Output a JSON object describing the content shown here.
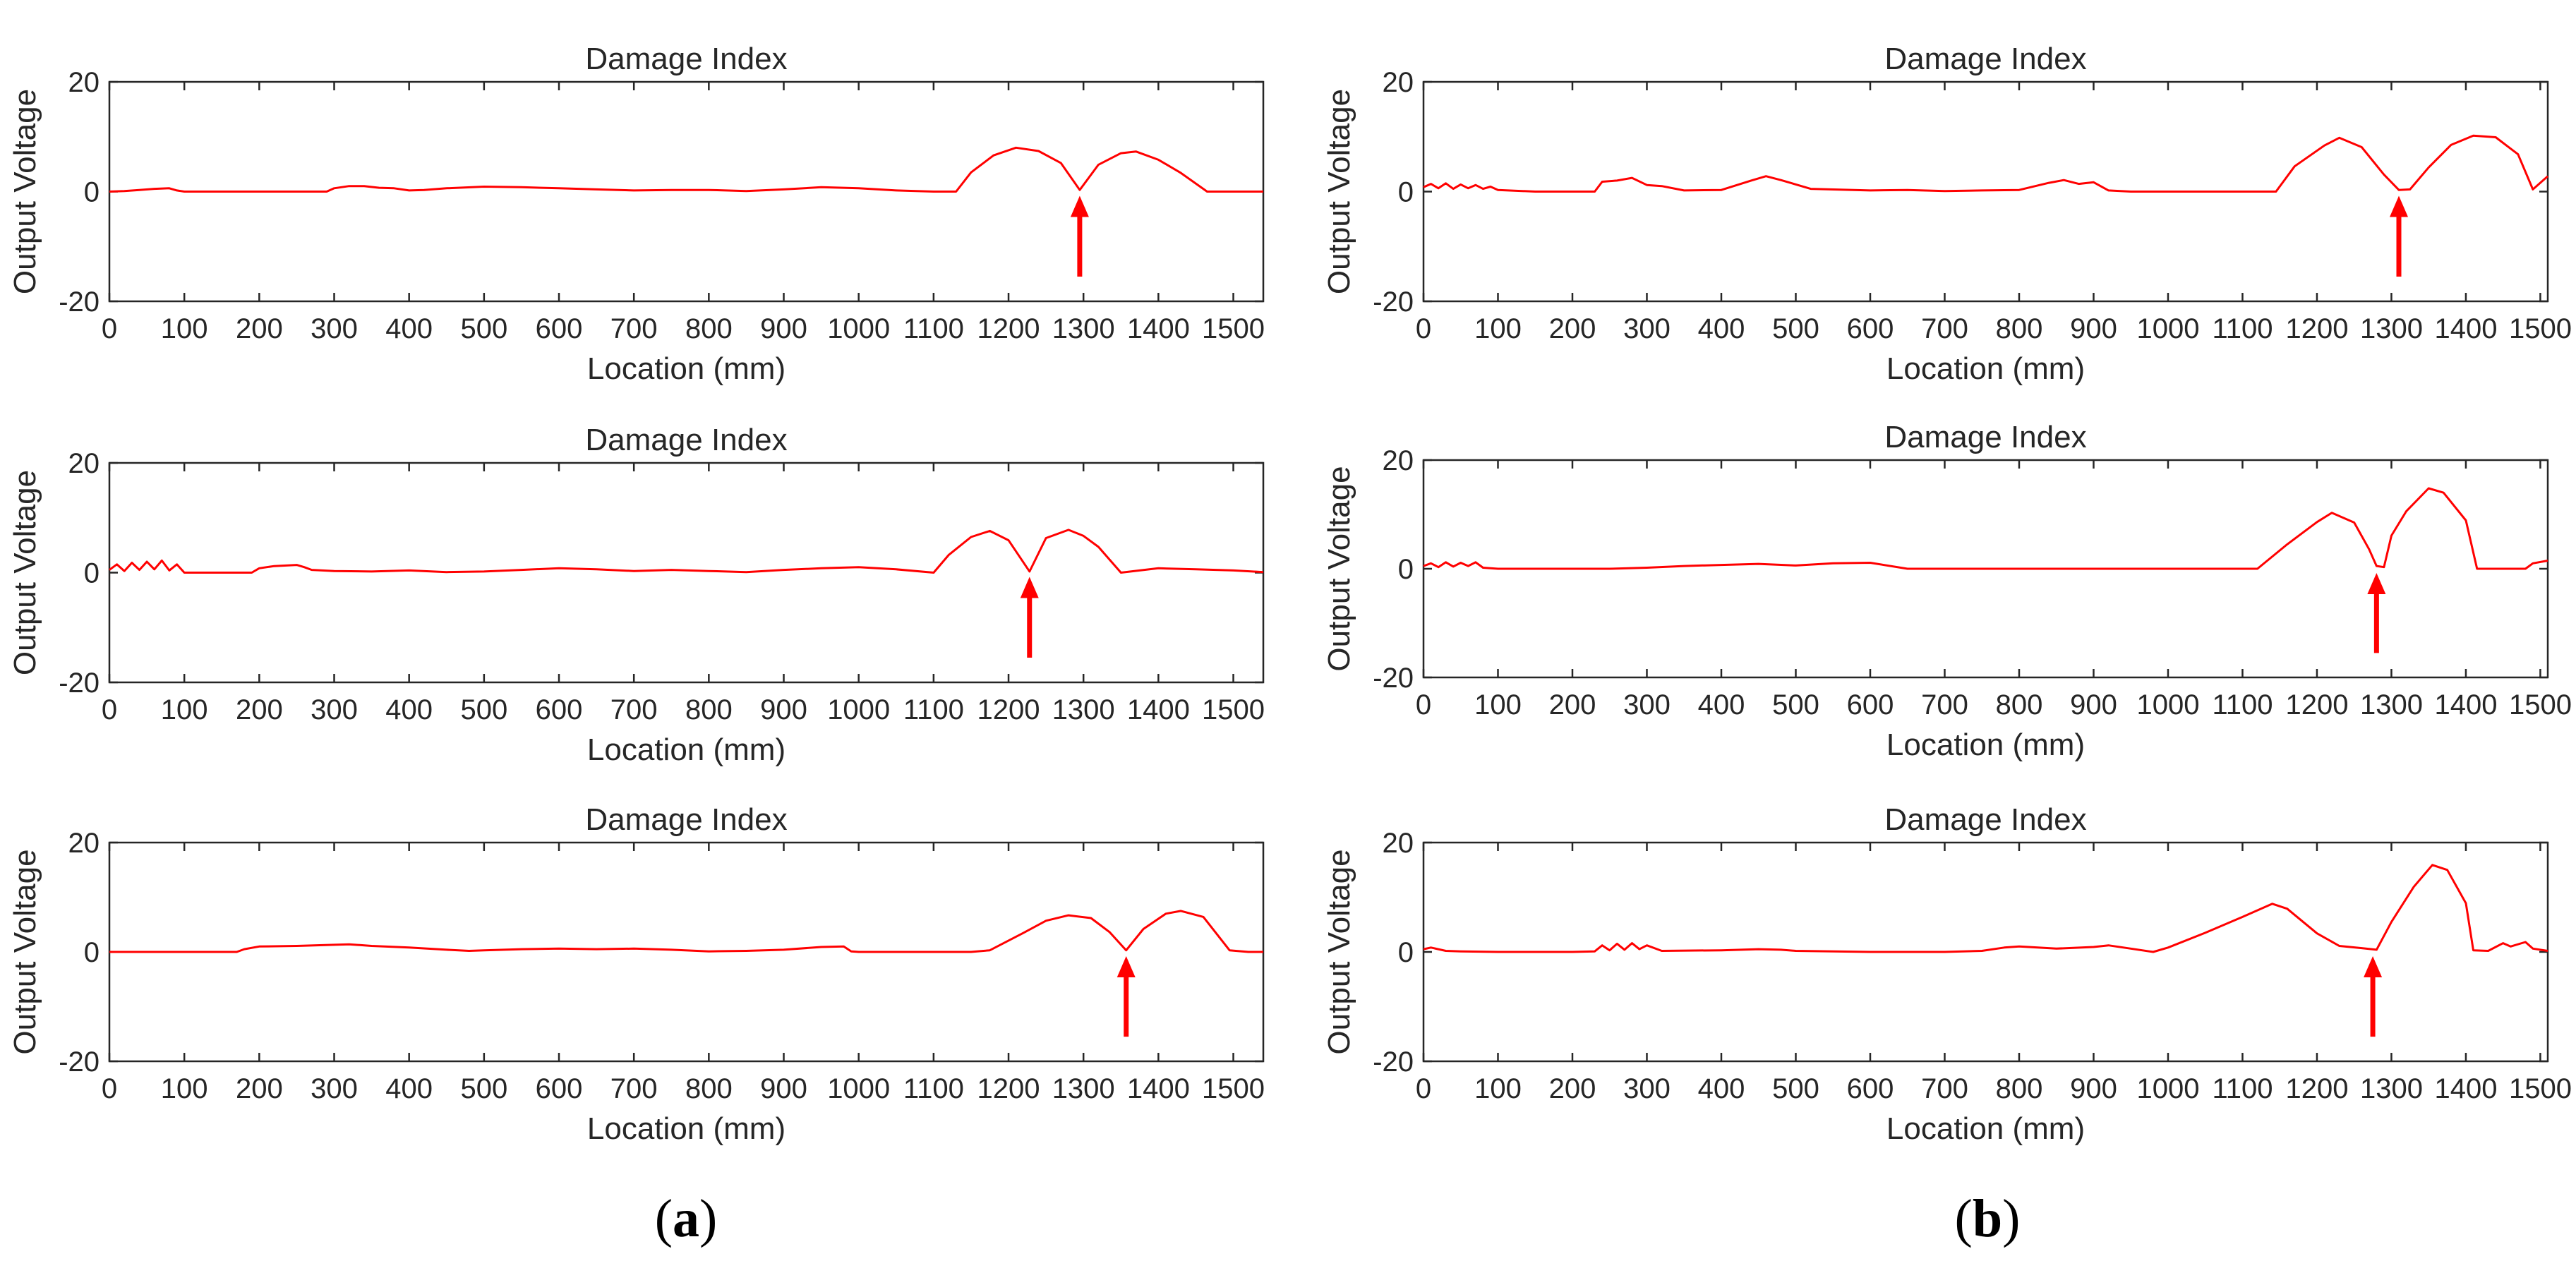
{
  "colors": {
    "series": "#ff0000",
    "arrow": "#ff0000",
    "axis": "#262626"
  },
  "panel_labels": [
    {
      "open": "(",
      "letter": "a",
      "close": ")"
    },
    {
      "open": "(",
      "letter": "b",
      "close": ")"
    }
  ],
  "chart_data": [
    {
      "type": "line",
      "panel": "a",
      "title": "Damage Index",
      "xlabel": "Location (mm)",
      "ylabel": "Output Voltage",
      "xlim": [
        0,
        1540
      ],
      "ylim": [
        -20,
        20
      ],
      "xticks": [
        0,
        100,
        200,
        300,
        400,
        500,
        600,
        700,
        800,
        900,
        1000,
        1100,
        1200,
        1300,
        1400,
        1500
      ],
      "yticks": [
        -20,
        0,
        20
      ],
      "series": [
        {
          "name": "Damage Index",
          "x": [
            0,
            20,
            40,
            60,
            80,
            90,
            100,
            150,
            200,
            250,
            290,
            300,
            320,
            340,
            360,
            380,
            400,
            420,
            450,
            500,
            550,
            600,
            650,
            700,
            750,
            800,
            850,
            900,
            950,
            1000,
            1050,
            1100,
            1130,
            1150,
            1180,
            1210,
            1240,
            1270,
            1295,
            1320,
            1350,
            1370,
            1400,
            1430,
            1465,
            1500,
            1520,
            1540
          ],
          "y": [
            0,
            0.1,
            0.3,
            0.5,
            0.6,
            0.2,
            0,
            0,
            0,
            0,
            0,
            0.6,
            1.0,
            1.0,
            0.7,
            0.6,
            0.2,
            0.3,
            0.6,
            0.9,
            0.8,
            0.6,
            0.4,
            0.2,
            0.3,
            0.3,
            0.1,
            0.4,
            0.8,
            0.6,
            0.2,
            0,
            0,
            3.5,
            6.6,
            8.0,
            7.4,
            5.2,
            0.3,
            4.9,
            7.0,
            7.3,
            5.8,
            3.4,
            0,
            0,
            0,
            0
          ]
        }
      ],
      "arrow_x": 1295
    },
    {
      "type": "line",
      "panel": "a",
      "title": "Damage Index",
      "xlabel": "Location (mm)",
      "ylabel": "Output Voltage",
      "xlim": [
        0,
        1540
      ],
      "ylim": [
        -20,
        20
      ],
      "xticks": [
        0,
        100,
        200,
        300,
        400,
        500,
        600,
        700,
        800,
        900,
        1000,
        1100,
        1200,
        1300,
        1400,
        1500
      ],
      "yticks": [
        -20,
        0,
        20
      ],
      "series": [
        {
          "name": "Damage Index",
          "x": [
            0,
            10,
            20,
            30,
            40,
            50,
            60,
            70,
            80,
            90,
            100,
            150,
            190,
            200,
            220,
            250,
            260,
            270,
            300,
            350,
            400,
            450,
            500,
            550,
            600,
            650,
            700,
            750,
            800,
            850,
            900,
            950,
            1000,
            1050,
            1100,
            1120,
            1150,
            1175,
            1200,
            1228,
            1250,
            1280,
            1300,
            1320,
            1350,
            1400,
            1450,
            1500,
            1540
          ],
          "y": [
            0.5,
            1.5,
            0.3,
            1.8,
            0.5,
            2.0,
            0.6,
            2.2,
            0.4,
            1.5,
            0,
            0,
            0,
            0.8,
            1.2,
            1.4,
            1.0,
            0.5,
            0.3,
            0.2,
            0.4,
            0.1,
            0.2,
            0.5,
            0.8,
            0.6,
            0.3,
            0.5,
            0.3,
            0.1,
            0.5,
            0.8,
            1.0,
            0.6,
            0,
            3.2,
            6.5,
            7.6,
            5.9,
            0.2,
            6.3,
            7.8,
            6.7,
            4.7,
            0,
            0.8,
            0.6,
            0.4,
            0.1
          ]
        }
      ],
      "arrow_x": 1228
    },
    {
      "type": "line",
      "panel": "a",
      "title": "Damage Index",
      "xlabel": "Location (mm)",
      "ylabel": "Output Voltage",
      "xlim": [
        0,
        1540
      ],
      "ylim": [
        -20,
        20
      ],
      "xticks": [
        0,
        100,
        200,
        300,
        400,
        500,
        600,
        700,
        800,
        900,
        1000,
        1100,
        1200,
        1300,
        1400,
        1500
      ],
      "yticks": [
        -20,
        0,
        20
      ],
      "series": [
        {
          "name": "Damage Index",
          "x": [
            0,
            100,
            170,
            180,
            200,
            250,
            300,
            320,
            350,
            400,
            450,
            480,
            500,
            550,
            600,
            650,
            700,
            750,
            800,
            850,
            900,
            950,
            980,
            990,
            1000,
            1050,
            1100,
            1150,
            1175,
            1220,
            1250,
            1280,
            1310,
            1335,
            1357,
            1380,
            1410,
            1430,
            1460,
            1495,
            1520,
            1540
          ],
          "y": [
            0,
            0,
            0,
            0.5,
            1.0,
            1.1,
            1.3,
            1.4,
            1.1,
            0.8,
            0.4,
            0.2,
            0.3,
            0.5,
            0.6,
            0.5,
            0.6,
            0.4,
            0.1,
            0.2,
            0.4,
            0.9,
            1.0,
            0.1,
            0,
            0,
            0,
            0,
            0.3,
            3.5,
            5.7,
            6.7,
            6.2,
            3.6,
            0.3,
            4.2,
            7.0,
            7.5,
            6.4,
            0.3,
            0,
            0
          ]
        }
      ],
      "arrow_x": 1357
    },
    {
      "type": "line",
      "panel": "b",
      "title": "Damage Index",
      "xlabel": "Location (mm)",
      "ylabel": "Output Voltage",
      "xlim": [
        0,
        1510
      ],
      "ylim": [
        -20,
        20
      ],
      "xticks": [
        0,
        100,
        200,
        300,
        400,
        500,
        600,
        700,
        800,
        900,
        1000,
        1100,
        1200,
        1300,
        1400,
        1500
      ],
      "yticks": [
        -20,
        0,
        20
      ],
      "series": [
        {
          "name": "Damage Index",
          "x": [
            0,
            10,
            20,
            30,
            40,
            50,
            60,
            70,
            80,
            90,
            100,
            150,
            200,
            230,
            240,
            260,
            280,
            300,
            320,
            350,
            400,
            440,
            460,
            480,
            520,
            600,
            650,
            700,
            750,
            800,
            840,
            860,
            880,
            900,
            920,
            950,
            1000,
            1050,
            1100,
            1145,
            1170,
            1210,
            1230,
            1260,
            1290,
            1310,
            1325,
            1350,
            1380,
            1410,
            1440,
            1470,
            1490,
            1510
          ],
          "y": [
            0.8,
            1.4,
            0.6,
            1.5,
            0.5,
            1.3,
            0.6,
            1.2,
            0.5,
            0.9,
            0.3,
            0,
            0,
            0,
            1.8,
            2.0,
            2.5,
            1.2,
            1.0,
            0.2,
            0.3,
            2.0,
            2.8,
            2.1,
            0.5,
            0.2,
            0.3,
            0.1,
            0.2,
            0.3,
            1.6,
            2.1,
            1.4,
            1.7,
            0.2,
            0,
            0,
            0,
            0,
            0,
            4.6,
            8.4,
            9.8,
            8.1,
            3.1,
            0.3,
            0.4,
            4.4,
            8.5,
            10.2,
            9.9,
            6.8,
            0.4,
            2.8
          ]
        }
      ],
      "arrow_x": 1310
    },
    {
      "type": "line",
      "panel": "b",
      "title": "Damage Index",
      "xlabel": "Location (mm)",
      "ylabel": "Output Voltage",
      "xlim": [
        0,
        1510
      ],
      "ylim": [
        -20,
        20
      ],
      "xticks": [
        0,
        100,
        200,
        300,
        400,
        500,
        600,
        700,
        800,
        900,
        1000,
        1100,
        1200,
        1300,
        1400,
        1500
      ],
      "yticks": [
        -20,
        0,
        20
      ],
      "series": [
        {
          "name": "Damage Index",
          "x": [
            0,
            10,
            20,
            30,
            40,
            50,
            60,
            70,
            80,
            100,
            200,
            250,
            300,
            350,
            400,
            450,
            500,
            550,
            600,
            650,
            700,
            800,
            900,
            1000,
            1100,
            1120,
            1160,
            1200,
            1220,
            1250,
            1270,
            1280,
            1290,
            1300,
            1320,
            1350,
            1370,
            1400,
            1415,
            1450,
            1480,
            1490,
            1510
          ],
          "y": [
            0.5,
            1.0,
            0.3,
            1.2,
            0.4,
            1.1,
            0.5,
            1.2,
            0.2,
            0,
            0,
            0,
            0.2,
            0.5,
            0.7,
            0.9,
            0.6,
            1.0,
            1.1,
            0,
            0,
            0,
            0,
            0,
            0,
            0,
            4.5,
            8.6,
            10.3,
            8.5,
            3.6,
            0.5,
            0.3,
            6.1,
            10.6,
            14.8,
            14.0,
            8.9,
            0,
            0,
            0,
            1.0,
            1.5
          ]
        }
      ],
      "arrow_x": 1280
    },
    {
      "type": "line",
      "panel": "b",
      "title": "Damage Index",
      "xlabel": "Location (mm)",
      "ylabel": "Output Voltage",
      "xlim": [
        0,
        1510
      ],
      "ylim": [
        -20,
        20
      ],
      "xticks": [
        0,
        100,
        200,
        300,
        400,
        500,
        600,
        700,
        800,
        900,
        1000,
        1100,
        1200,
        1300,
        1400,
        1500
      ],
      "yticks": [
        -20,
        0,
        20
      ],
      "series": [
        {
          "name": "Damage Index",
          "x": [
            0,
            10,
            30,
            50,
            100,
            200,
            230,
            240,
            250,
            260,
            270,
            280,
            290,
            300,
            320,
            400,
            450,
            480,
            500,
            600,
            700,
            750,
            780,
            800,
            850,
            900,
            920,
            950,
            980,
            1000,
            1050,
            1100,
            1140,
            1160,
            1200,
            1230,
            1260,
            1280,
            1300,
            1330,
            1355,
            1375,
            1400,
            1410,
            1430,
            1450,
            1460,
            1480,
            1490,
            1510
          ],
          "y": [
            0.5,
            0.8,
            0.2,
            0.1,
            0,
            0,
            0.1,
            1.2,
            0.3,
            1.5,
            0.4,
            1.6,
            0.5,
            1.2,
            0.2,
            0.3,
            0.5,
            0.4,
            0.2,
            0,
            0,
            0.2,
            0.8,
            1.0,
            0.6,
            0.9,
            1.2,
            0.6,
            0,
            0.8,
            3.5,
            6.4,
            8.8,
            7.9,
            3.4,
            1.1,
            0.7,
            0.4,
            5.5,
            11.9,
            15.9,
            15.0,
            8.9,
            0.3,
            0.2,
            1.6,
            1.0,
            1.8,
            0.6,
            0.2
          ]
        }
      ],
      "arrow_x": 1275
    }
  ]
}
